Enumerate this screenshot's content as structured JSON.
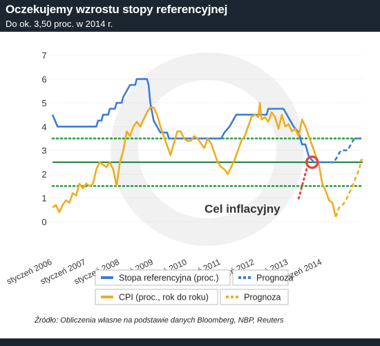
{
  "header": {
    "title": "Oczekujemy wzrostu stopy referencyjnej",
    "subtitle": "Do ok. 3,50 proc. w 2014 r."
  },
  "source": "Źródło: Obliczenia własne na podstawie danych Bloomberg, NBP, Reuters",
  "colors": {
    "header_bg": "#1c2630",
    "blue": "#3b7bdc",
    "orange": "#f0ac1c",
    "band": "#1f9a3a",
    "target": "#1a7a35",
    "marker": "#e04848",
    "grid": "#cccccc"
  },
  "chart_data": {
    "type": "line",
    "ylim": [
      0,
      7
    ],
    "yticks": [
      "0",
      "1",
      "2",
      "3",
      "4",
      "5",
      "6",
      "7"
    ],
    "xlim": [
      2006,
      2015.2
    ],
    "xticks": [
      {
        "x": 2006,
        "label": "styczeń 2006"
      },
      {
        "x": 2007,
        "label": "styczeń 2007"
      },
      {
        "x": 2008,
        "label": "styczeń 2008"
      },
      {
        "x": 2009,
        "label": "styczeń 2009"
      },
      {
        "x": 2010,
        "label": "styczeń 2010"
      },
      {
        "x": 2011,
        "label": "styczeń 2011"
      },
      {
        "x": 2012,
        "label": "styczeń 2012"
      },
      {
        "x": 2013,
        "label": "styczeń 2013"
      },
      {
        "x": 2014,
        "label": "styczeń 2014"
      }
    ],
    "series": [
      {
        "name": "Stopa referencyjna (proc.)",
        "color": "#3b7bdc",
        "style": "solid",
        "points": [
          [
            2006,
            4.5
          ],
          [
            2006.15,
            4.0
          ],
          [
            2007.3,
            4.0
          ],
          [
            2007.35,
            4.25
          ],
          [
            2007.45,
            4.25
          ],
          [
            2007.5,
            4.5
          ],
          [
            2007.65,
            4.5
          ],
          [
            2007.7,
            4.75
          ],
          [
            2007.85,
            4.75
          ],
          [
            2007.9,
            5.0
          ],
          [
            2008.05,
            5.0
          ],
          [
            2008.1,
            5.25
          ],
          [
            2008.2,
            5.5
          ],
          [
            2008.3,
            5.75
          ],
          [
            2008.45,
            5.75
          ],
          [
            2008.5,
            6.0
          ],
          [
            2008.8,
            6.0
          ],
          [
            2008.85,
            5.75
          ],
          [
            2008.9,
            5.0
          ],
          [
            2009.0,
            4.25
          ],
          [
            2009.1,
            4.0
          ],
          [
            2009.2,
            3.75
          ],
          [
            2009.4,
            3.75
          ],
          [
            2009.45,
            3.5
          ],
          [
            2011.0,
            3.5
          ],
          [
            2011.1,
            3.75
          ],
          [
            2011.25,
            4.0
          ],
          [
            2011.35,
            4.25
          ],
          [
            2011.45,
            4.5
          ],
          [
            2012.35,
            4.5
          ],
          [
            2012.4,
            4.75
          ],
          [
            2012.85,
            4.75
          ],
          [
            2012.95,
            4.5
          ],
          [
            2013.05,
            4.25
          ],
          [
            2013.15,
            4.0
          ],
          [
            2013.3,
            3.75
          ],
          [
            2013.4,
            3.25
          ],
          [
            2013.5,
            3.25
          ],
          [
            2013.6,
            2.75
          ],
          [
            2013.75,
            2.5
          ],
          [
            2014.0,
            2.5
          ]
        ]
      },
      {
        "name": "Prognoza",
        "color": "#3b7bdc",
        "style": "dashed",
        "points": [
          [
            2014.0,
            2.5
          ],
          [
            2014.35,
            2.5
          ],
          [
            2014.45,
            2.75
          ],
          [
            2014.55,
            3.0
          ],
          [
            2014.75,
            3.0
          ],
          [
            2014.85,
            3.25
          ],
          [
            2014.95,
            3.5
          ],
          [
            2015.15,
            3.5
          ]
        ]
      },
      {
        "name": "CPI (proc., rok do roku)",
        "color": "#f0ac1c",
        "style": "solid",
        "points": [
          [
            2006,
            0.6
          ],
          [
            2006.1,
            0.7
          ],
          [
            2006.2,
            0.4
          ],
          [
            2006.3,
            0.7
          ],
          [
            2006.4,
            0.9
          ],
          [
            2006.5,
            0.8
          ],
          [
            2006.6,
            1.2
          ],
          [
            2006.7,
            1.1
          ],
          [
            2006.8,
            1.6
          ],
          [
            2006.9,
            1.4
          ],
          [
            2007.0,
            1.6
          ],
          [
            2007.1,
            1.5
          ],
          [
            2007.2,
            1.6
          ],
          [
            2007.3,
            2.2
          ],
          [
            2007.4,
            2.5
          ],
          [
            2007.5,
            2.4
          ],
          [
            2007.6,
            2.3
          ],
          [
            2007.7,
            2.5
          ],
          [
            2007.8,
            2.2
          ],
          [
            2007.9,
            1.5
          ],
          [
            2008.0,
            2.5
          ],
          [
            2008.1,
            3.0
          ],
          [
            2008.2,
            3.8
          ],
          [
            2008.3,
            3.6
          ],
          [
            2008.4,
            4.0
          ],
          [
            2008.5,
            4.2
          ],
          [
            2008.6,
            4.0
          ],
          [
            2008.7,
            4.3
          ],
          [
            2008.8,
            4.6
          ],
          [
            2008.9,
            4.8
          ],
          [
            2009.0,
            4.8
          ],
          [
            2009.1,
            4.5
          ],
          [
            2009.2,
            4.0
          ],
          [
            2009.3,
            3.6
          ],
          [
            2009.4,
            3.2
          ],
          [
            2009.5,
            2.8
          ],
          [
            2009.6,
            3.3
          ],
          [
            2009.7,
            3.8
          ],
          [
            2009.8,
            3.8
          ],
          [
            2009.9,
            3.5
          ],
          [
            2010.0,
            3.4
          ],
          [
            2010.1,
            3.4
          ],
          [
            2010.2,
            3.6
          ],
          [
            2010.3,
            3.5
          ],
          [
            2010.4,
            3.3
          ],
          [
            2010.5,
            3.1
          ],
          [
            2010.6,
            3.5
          ],
          [
            2010.7,
            3.3
          ],
          [
            2010.8,
            2.9
          ],
          [
            2010.9,
            2.5
          ],
          [
            2011.0,
            2.3
          ],
          [
            2011.1,
            2.2
          ],
          [
            2011.2,
            2.0
          ],
          [
            2011.3,
            2.3
          ],
          [
            2011.4,
            2.6
          ],
          [
            2011.5,
            3.0
          ],
          [
            2011.6,
            3.4
          ],
          [
            2011.7,
            3.6
          ],
          [
            2011.8,
            4.0
          ],
          [
            2011.9,
            4.4
          ],
          [
            2012.0,
            4.5
          ],
          [
            2012.1,
            4.4
          ],
          [
            2012.15,
            5.0
          ],
          [
            2012.2,
            4.3
          ],
          [
            2012.3,
            4.4
          ],
          [
            2012.4,
            4.2
          ],
          [
            2012.5,
            4.6
          ],
          [
            2012.6,
            4.4
          ],
          [
            2012.7,
            3.9
          ],
          [
            2012.8,
            4.5
          ],
          [
            2012.9,
            4.0
          ],
          [
            2013.0,
            4.1
          ],
          [
            2013.1,
            3.8
          ],
          [
            2013.2,
            3.9
          ],
          [
            2013.3,
            3.6
          ],
          [
            2013.4,
            4.3
          ],
          [
            2013.5,
            4.0
          ],
          [
            2013.6,
            3.6
          ],
          [
            2013.7,
            3.2
          ],
          [
            2013.8,
            2.8
          ],
          [
            2013.9,
            2.4
          ],
          [
            2014.0,
            1.6
          ],
          [
            2014.1,
            1.3
          ],
          [
            2014.2,
            0.9
          ],
          [
            2014.3,
            0.8
          ],
          [
            2014.35,
            0.5
          ],
          [
            2014.4,
            0.2
          ]
        ]
      },
      {
        "name": "Prognoza",
        "color": "#f0ac1c",
        "style": "dashed",
        "points": [
          [
            2014.4,
            0.2
          ],
          [
            2014.5,
            0.6
          ],
          [
            2014.6,
            0.7
          ],
          [
            2014.7,
            0.9
          ],
          [
            2014.8,
            1.2
          ],
          [
            2014.9,
            1.5
          ],
          [
            2015.0,
            1.9
          ],
          [
            2015.1,
            2.2
          ],
          [
            2015.15,
            2.6
          ],
          [
            2015.2,
            2.6
          ]
        ]
      }
    ],
    "band_lines": [
      3.5,
      1.5
    ],
    "target_line": 2.5,
    "annotation": {
      "text": "Cel inflacyjny",
      "marker": [
        2013.7,
        2.5
      ],
      "dots_from": [
        2013.3,
        1.5
      ]
    },
    "legend": [
      {
        "label": "Stopa referencyjna (proc.)",
        "color": "#3b7bdc",
        "style": "solid"
      },
      {
        "label": "Prognoza",
        "color": "#3b7bdc",
        "style": "dashed"
      },
      {
        "label": "CPI (proc., rok do roku)",
        "color": "#f0ac1c",
        "style": "solid"
      },
      {
        "label": "Prognoza",
        "color": "#f0ac1c",
        "style": "dashed"
      }
    ]
  }
}
